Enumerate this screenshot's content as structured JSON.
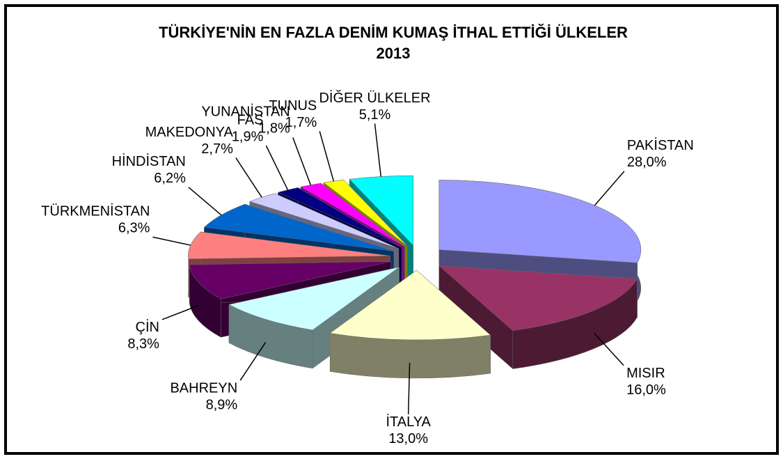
{
  "chart_data": {
    "type": "pie3d",
    "title": "TÜRKİYE'NİN EN FAZLA DENİM KUMAŞ İTHAL ETTİĞİ ÜLKELER",
    "subtitle": "2013",
    "categories": [
      "PAKİSTAN",
      "MISIR",
      "İTALYA",
      "BAHREYN",
      "ÇİN",
      "TÜRKMENİSTAN",
      "HİNDİSTAN",
      "MAKEDONYA",
      "FAS",
      "YUNANİSTAN",
      "TUNUS",
      "DİĞER ÜLKELER"
    ],
    "values": [
      28.0,
      16.0,
      13.0,
      8.9,
      8.3,
      6.3,
      6.2,
      2.7,
      1.9,
      1.8,
      1.7,
      5.1
    ],
    "value_labels": [
      "28,0%",
      "16,0%",
      "13,0%",
      "8,9%",
      "8,3%",
      "6,3%",
      "6,2%",
      "2,7%",
      "1,9%",
      "1,8%",
      "1,7%",
      "5,1%"
    ],
    "colors": [
      "#9999ff",
      "#993366",
      "#ffffcc",
      "#ccffff",
      "#660066",
      "#ff8080",
      "#0066cc",
      "#ccccff",
      "#000080",
      "#ff00ff",
      "#ffff00",
      "#00ffff"
    ]
  }
}
